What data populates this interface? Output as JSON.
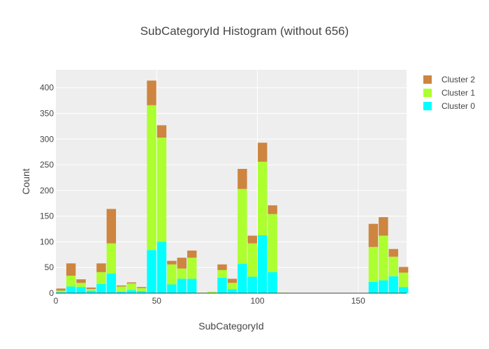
{
  "chart_data": {
    "type": "bar",
    "stacked": true,
    "title": "SubCategoryId Histogram (without 656)",
    "xlabel": "SubCategoryId",
    "ylabel": "Count",
    "xlim": [
      0,
      174
    ],
    "ylim": [
      0,
      435
    ],
    "xticks": [
      0,
      50,
      100,
      150
    ],
    "yticks": [
      0,
      50,
      100,
      150,
      200,
      250,
      300,
      350,
      400
    ],
    "grid": true,
    "legend_position": "top-right",
    "legend_order": [
      "Cluster 2",
      "Cluster 1",
      "Cluster 0"
    ],
    "bin_width": 5,
    "bin_edges_start": [
      0,
      5,
      10,
      15,
      20,
      25,
      30,
      35,
      40,
      45,
      50,
      55,
      60,
      65,
      70,
      75,
      80,
      85,
      90,
      95,
      100,
      105,
      110,
      115,
      120,
      125,
      130,
      135,
      140,
      145,
      150,
      155,
      160,
      165,
      170
    ],
    "series": [
      {
        "name": "Cluster 0",
        "color": "#00ffff",
        "values": [
          2,
          13,
          12,
          5,
          18,
          38,
          3,
          6,
          4,
          84,
          100,
          17,
          28,
          28,
          0,
          1,
          30,
          8,
          57,
          32,
          113,
          41,
          0,
          0,
          0,
          0,
          0,
          0,
          0,
          0,
          0,
          22,
          25,
          33,
          12
        ]
      },
      {
        "name": "Cluster 1",
        "color": "#adff2f",
        "values": [
          3,
          21,
          8,
          3,
          23,
          59,
          10,
          13,
          6,
          282,
          203,
          39,
          20,
          41,
          1,
          2,
          15,
          12,
          146,
          65,
          143,
          113,
          1,
          0,
          0,
          0,
          0,
          0,
          0,
          0,
          0,
          68,
          87,
          38,
          28
        ]
      },
      {
        "name": "Cluster 2",
        "color": "#cd853f",
        "values": [
          4,
          24,
          7,
          3,
          17,
          67,
          2,
          2,
          2,
          48,
          24,
          7,
          21,
          14,
          0,
          0,
          11,
          8,
          39,
          15,
          37,
          17,
          0,
          0,
          0,
          0,
          0,
          0,
          0,
          0,
          0,
          45,
          36,
          15,
          11
        ]
      }
    ]
  }
}
